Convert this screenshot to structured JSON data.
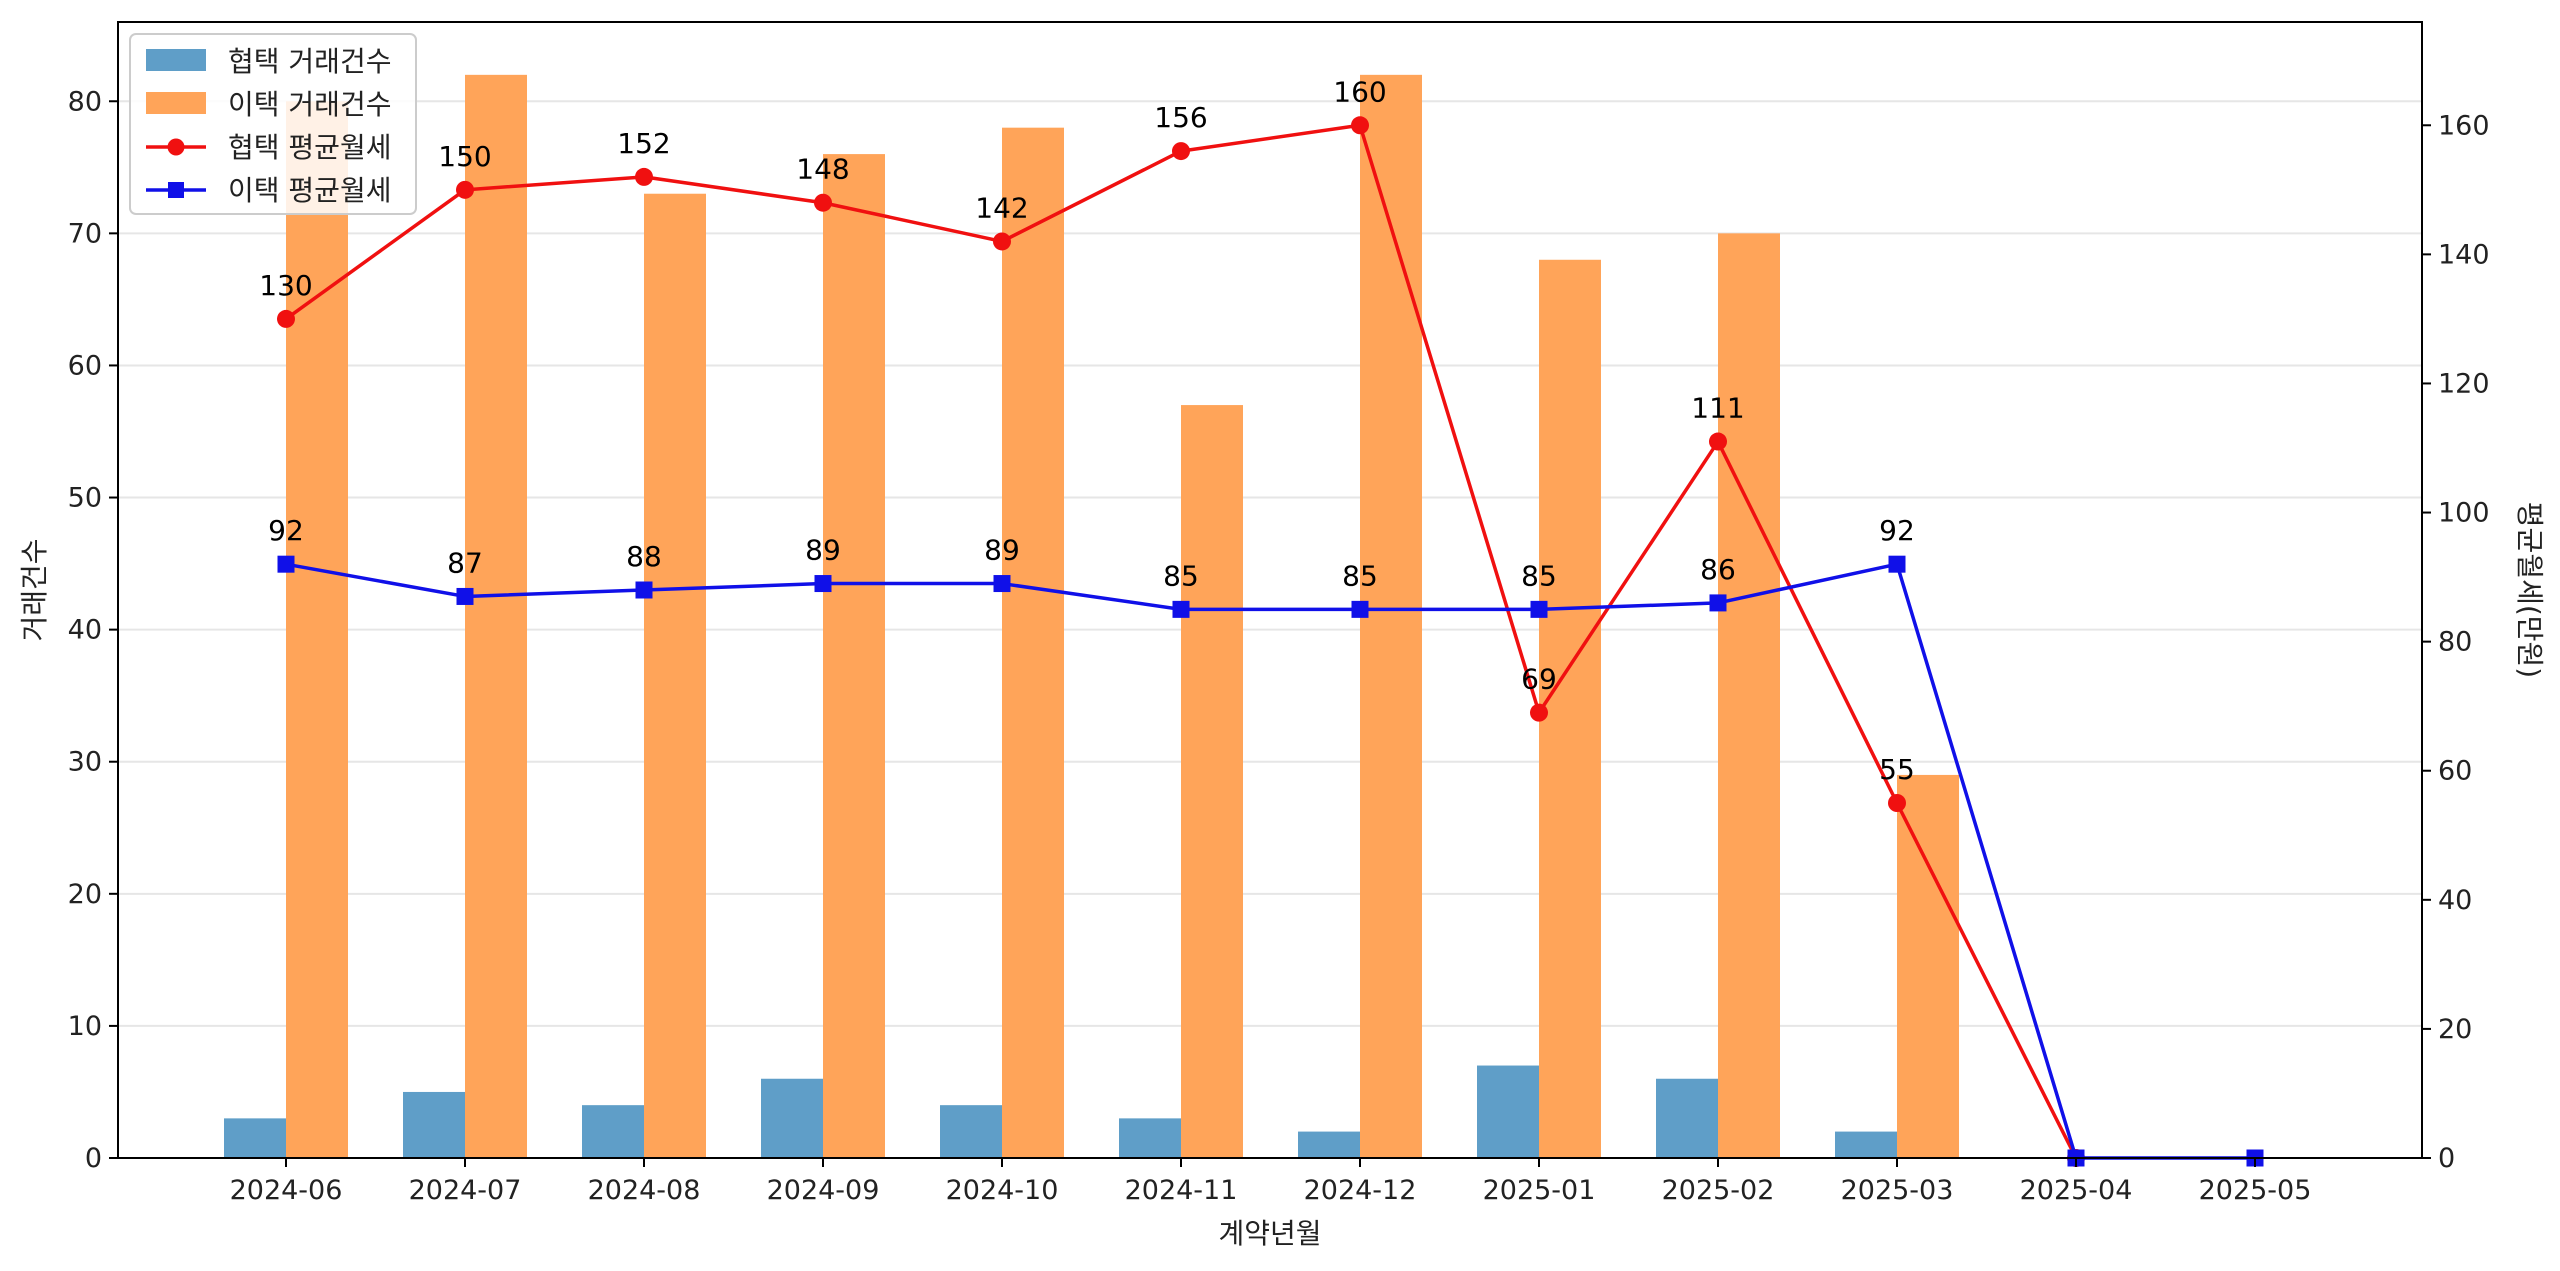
{
  "chart_data": {
    "type": "bar",
    "categories": [
      "2024-06",
      "2024-07",
      "2024-08",
      "2024-09",
      "2024-10",
      "2024-11",
      "2024-12",
      "2025-01",
      "2025-02",
      "2025-03",
      "2025-04",
      "2025-05"
    ],
    "xlabel": "계약년월",
    "ylabel_left": "거래건수",
    "ylabel_right": "평균월세(만원)",
    "ylim_left": [
      0,
      86
    ],
    "ylim_right": [
      0,
      176
    ],
    "yticks_left": [
      0,
      10,
      20,
      30,
      40,
      50,
      60,
      70,
      80
    ],
    "yticks_right": [
      0,
      20,
      40,
      60,
      80,
      100,
      120,
      140,
      160
    ],
    "grid": "horizontal",
    "legend_position": "top-left",
    "bar_series": [
      {
        "name": "협택 거래건수",
        "color": "#5f9ec8",
        "values": [
          3,
          5,
          4,
          6,
          4,
          3,
          2,
          7,
          6,
          2,
          0,
          0
        ]
      },
      {
        "name": "이택 거래건수",
        "color": "#ffa459",
        "values": [
          80,
          82,
          73,
          76,
          78,
          57,
          82,
          68,
          70,
          29,
          0,
          0
        ]
      }
    ],
    "line_series": [
      {
        "name": "협택 평균월세",
        "color": "#f01010",
        "marker": "circle",
        "values": [
          130,
          150,
          152,
          148,
          142,
          156,
          160,
          69,
          111,
          55,
          0,
          null
        ],
        "labels": [
          "130",
          "150",
          "152",
          "148",
          "142",
          "156",
          "160",
          "69",
          "111",
          "55",
          "",
          ""
        ]
      },
      {
        "name": "이택 평균월세",
        "color": "#1010e8",
        "marker": "square",
        "values": [
          92,
          87,
          88,
          89,
          89,
          85,
          85,
          85,
          86,
          92,
          0,
          0
        ],
        "labels": [
          "92",
          "87",
          "88",
          "89",
          "89",
          "85",
          "85",
          "85",
          "86",
          "92",
          "",
          ""
        ]
      }
    ]
  }
}
